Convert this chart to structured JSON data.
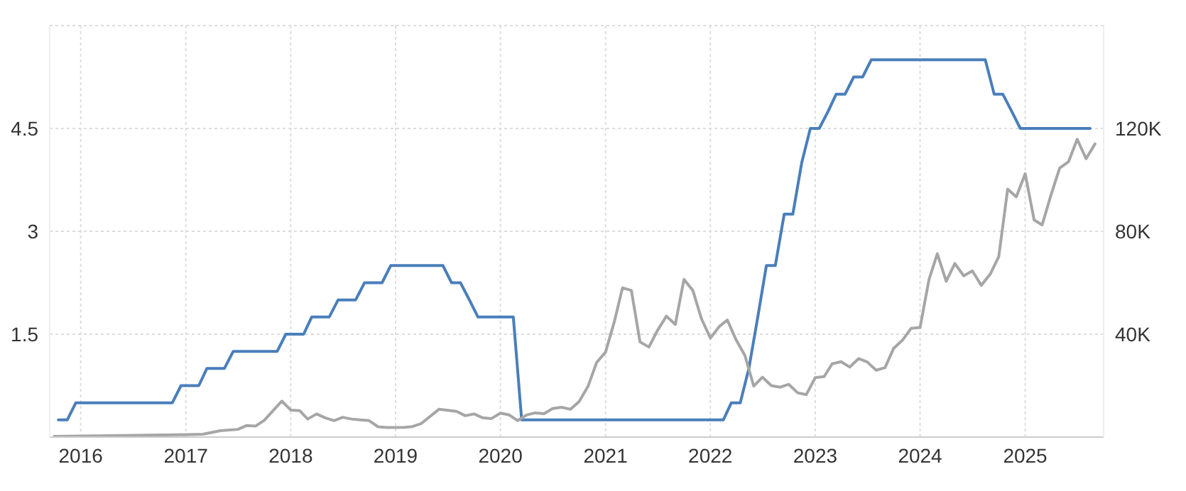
{
  "chart_data": {
    "type": "line",
    "grid": true,
    "xlim": [
      "2015-09-15",
      "2025-10-01"
    ],
    "xticks": [
      {
        "value": "2016",
        "label": "2016"
      },
      {
        "value": "2017",
        "label": "2017"
      },
      {
        "value": "2018",
        "label": "2018"
      },
      {
        "value": "2019",
        "label": "2019"
      },
      {
        "value": "2020",
        "label": "2020"
      },
      {
        "value": "2021",
        "label": "2021"
      },
      {
        "value": "2022",
        "label": "2022"
      },
      {
        "value": "2023",
        "label": "2023"
      },
      {
        "value": "2024",
        "label": "2024"
      },
      {
        "value": "2025",
        "label": "2025"
      }
    ],
    "ylim": [
      0,
      6
    ],
    "yticks": [
      1.5,
      3,
      4.5,
      {
        "value": 6,
        "label": null
      }
    ],
    "y2lim": [
      0,
      160000
    ],
    "y2ticks": [
      {
        "value": 40000,
        "label": "40K"
      },
      {
        "value": 80000,
        "label": "80K"
      },
      {
        "value": 120000,
        "label": "120K"
      }
    ],
    "series": [
      {
        "color": "#4a7ebb",
        "x": [
          "2015-10-15",
          "2015-11-15",
          "2015-12-15",
          "2016-11-15",
          "2016-12-15",
          "2017-02-15",
          "2017-03-15",
          "2017-05-15",
          "2017-06-15",
          "2017-11-15",
          "2017-12-15",
          "2018-02-15",
          "2018-03-15",
          "2018-05-15",
          "2018-06-15",
          "2018-08-15",
          "2018-09-15",
          "2018-11-15",
          "2018-12-15",
          "2019-06-15",
          "2019-07-15",
          "2019-08-15",
          "2019-09-15",
          "2019-10-15",
          "2020-02-15",
          "2020-03-15",
          "2022-02-15",
          "2022-03-15",
          "2022-04-15",
          "2022-05-15",
          "2022-06-15",
          "2022-07-15",
          "2022-08-15",
          "2022-09-15",
          "2022-10-15",
          "2022-11-15",
          "2022-12-15",
          "2023-01-15",
          "2023-02-15",
          "2023-03-15",
          "2023-04-15",
          "2023-05-15",
          "2023-06-15",
          "2023-07-15",
          "2024-08-15",
          "2024-09-15",
          "2024-10-15",
          "2024-11-15",
          "2024-12-15",
          "2025-08-15"
        ],
        "values": [
          0.25,
          0.25,
          0.5,
          0.5,
          0.75,
          0.75,
          1.0,
          1.0,
          1.25,
          1.25,
          1.5,
          1.5,
          1.75,
          1.75,
          2.0,
          2.0,
          2.25,
          2.25,
          2.5,
          2.5,
          2.25,
          2.25,
          2.0,
          1.75,
          1.75,
          0.25,
          0.25,
          0.5,
          0.5,
          1.0,
          1.75,
          2.5,
          2.5,
          3.25,
          3.25,
          4.0,
          4.5,
          4.5,
          4.75,
          5.0,
          5.0,
          5.25,
          5.25,
          5.5,
          5.5,
          5.0,
          5.0,
          4.75,
          4.5,
          4.5
        ]
      },
      {
        "color": "#a6a6a6",
        "axis": "y2",
        "x": [
          "2015-10",
          "2016-06",
          "2016-12",
          "2017-03",
          "2017-05",
          "2017-07",
          "2017-08",
          "2017-09",
          "2017-10",
          "2017-12",
          "2018-01",
          "2018-02",
          "2018-03",
          "2018-04",
          "2018-05",
          "2018-06",
          "2018-07",
          "2018-08",
          "2018-10",
          "2018-11",
          "2018-12",
          "2019-02",
          "2019-03",
          "2019-04",
          "2019-06",
          "2019-08",
          "2019-09",
          "2019-10",
          "2019-11",
          "2019-12",
          "2020-01",
          "2020-02",
          "2020-03",
          "2020-04",
          "2020-05",
          "2020-06",
          "2020-07",
          "2020-08",
          "2020-09",
          "2020-10",
          "2020-11",
          "2020-12",
          "2021-01",
          "2021-02",
          "2021-03",
          "2021-04",
          "2021-05",
          "2021-06",
          "2021-07",
          "2021-08",
          "2021-09",
          "2021-10",
          "2021-11",
          "2021-12",
          "2022-01",
          "2022-02",
          "2022-03",
          "2022-04",
          "2022-05",
          "2022-06",
          "2022-07",
          "2022-08",
          "2022-09",
          "2022-10",
          "2022-11",
          "2022-12",
          "2023-01",
          "2023-02",
          "2023-03",
          "2023-04",
          "2023-05",
          "2023-06",
          "2023-07",
          "2023-08",
          "2023-09",
          "2023-10",
          "2023-11",
          "2023-12",
          "2024-01",
          "2024-02",
          "2024-03",
          "2024-04",
          "2024-05",
          "2024-06",
          "2024-07",
          "2024-08",
          "2024-09",
          "2024-10",
          "2024-11",
          "2024-12",
          "2025-01",
          "2025-02",
          "2025-03",
          "2025-04",
          "2025-05",
          "2025-06",
          "2025-07",
          "2025-08",
          "2025-09"
        ],
        "values": [
          300,
          600,
          900,
          1100,
          2500,
          3000,
          4500,
          4300,
          6500,
          14000,
          10500,
          10300,
          7000,
          9000,
          7500,
          6400,
          7700,
          7000,
          6400,
          4000,
          3700,
          3800,
          4100,
          5300,
          10800,
          10000,
          8300,
          9000,
          7500,
          7200,
          9300,
          8600,
          6400,
          8600,
          9400,
          9100,
          11100,
          11600,
          10800,
          13800,
          19700,
          29000,
          33000,
          45000,
          58000,
          57000,
          37000,
          35000,
          41500,
          47000,
          43800,
          61300,
          57000,
          46000,
          38500,
          43000,
          45500,
          37700,
          31800,
          19800,
          23300,
          20000,
          19400,
          20500,
          17200,
          16500,
          23100,
          23500,
          28500,
          29300,
          27200,
          30500,
          29200,
          26000,
          27000,
          34500,
          37700,
          42300,
          42600,
          61200,
          71300,
          60600,
          67500,
          62700,
          64600,
          59000,
          63300,
          70200,
          96400,
          93400,
          102400,
          84400,
          82500,
          94200,
          104600,
          107100,
          115800,
          108200,
          114000
        ]
      }
    ]
  }
}
